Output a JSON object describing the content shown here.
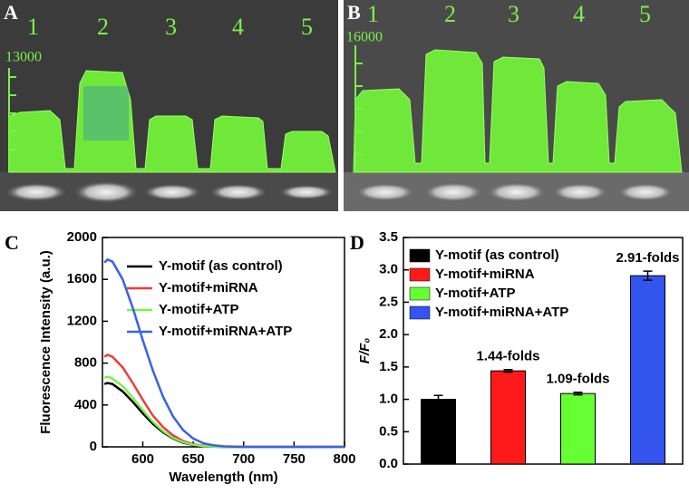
{
  "panels": {
    "A": {
      "label": "A",
      "lanes": [
        "1",
        "2",
        "3",
        "4",
        "5"
      ],
      "scale_label": "13000"
    },
    "B": {
      "label": "B",
      "lanes": [
        "1",
        "2",
        "3",
        "4",
        "5"
      ],
      "scale_label": "16000"
    }
  },
  "chart_data": [
    {
      "type": "line",
      "panel": "C",
      "xlabel": "Wavelength (nm)",
      "ylabel": "Fluorescence Intensity (a.u.)",
      "x": [
        562,
        565,
        570,
        580,
        590,
        600,
        610,
        620,
        630,
        640,
        650,
        660,
        670,
        680,
        700,
        750,
        800
      ],
      "series": [
        {
          "name": "Y-motif (as control)",
          "color": "#000000",
          "values": [
            600,
            610,
            600,
            530,
            430,
            320,
            220,
            140,
            80,
            40,
            18,
            8,
            3,
            0,
            0,
            0,
            0
          ]
        },
        {
          "name": "Y-motif+miRNA",
          "color": "#ee3b3b",
          "values": [
            860,
            880,
            860,
            760,
            610,
            450,
            300,
            190,
            110,
            55,
            25,
            10,
            4,
            0,
            0,
            0,
            0
          ]
        },
        {
          "name": "Y-motif+ATP",
          "color": "#7df04a",
          "values": [
            660,
            670,
            650,
            580,
            470,
            350,
            240,
            150,
            85,
            45,
            20,
            8,
            3,
            0,
            0,
            0,
            0
          ]
        },
        {
          "name": "Y-motif+miRNA+ATP",
          "color": "#3a62e0",
          "values": [
            1760,
            1790,
            1770,
            1600,
            1330,
            1020,
            730,
            480,
            290,
            160,
            80,
            35,
            15,
            5,
            0,
            0,
            0
          ]
        }
      ],
      "xlim": [
        560,
        800
      ],
      "xticks": [
        600,
        650,
        700,
        750,
        800
      ],
      "ylim": [
        0,
        2000
      ],
      "yticks": [
        0,
        400,
        800,
        1200,
        1600,
        2000
      ]
    },
    {
      "type": "bar",
      "panel": "D",
      "ylabel": "F/F₀",
      "series": [
        {
          "name": "Y-motif (as control)",
          "color": "#000000",
          "values": [
            1.0
          ],
          "errors": [
            0.06
          ]
        },
        {
          "name": "Y-motif+miRNA",
          "color": "#ff1a1a",
          "values": [
            1.44
          ],
          "errors": [
            0.02
          ],
          "value_labels": [
            "1.44-folds"
          ]
        },
        {
          "name": "Y-motif+ATP",
          "color": "#66ff33",
          "values": [
            1.09
          ],
          "errors": [
            0.02
          ],
          "value_labels": [
            "1.09-folds"
          ]
        },
        {
          "name": "Y-motif+miRNA+ATP",
          "color": "#3355ee",
          "values": [
            2.91
          ],
          "errors": [
            0.07
          ],
          "value_labels": [
            "2.91-folds"
          ]
        }
      ],
      "ylim": [
        0,
        3.5
      ],
      "yticks": [
        {
          "value": 0,
          "label": "0.0"
        },
        0.5,
        {
          "value": 1,
          "label": "1.0"
        },
        1.5,
        {
          "value": 2,
          "label": "2.0"
        },
        2.5,
        {
          "value": 3,
          "label": "3.0"
        },
        3.5
      ]
    }
  ]
}
